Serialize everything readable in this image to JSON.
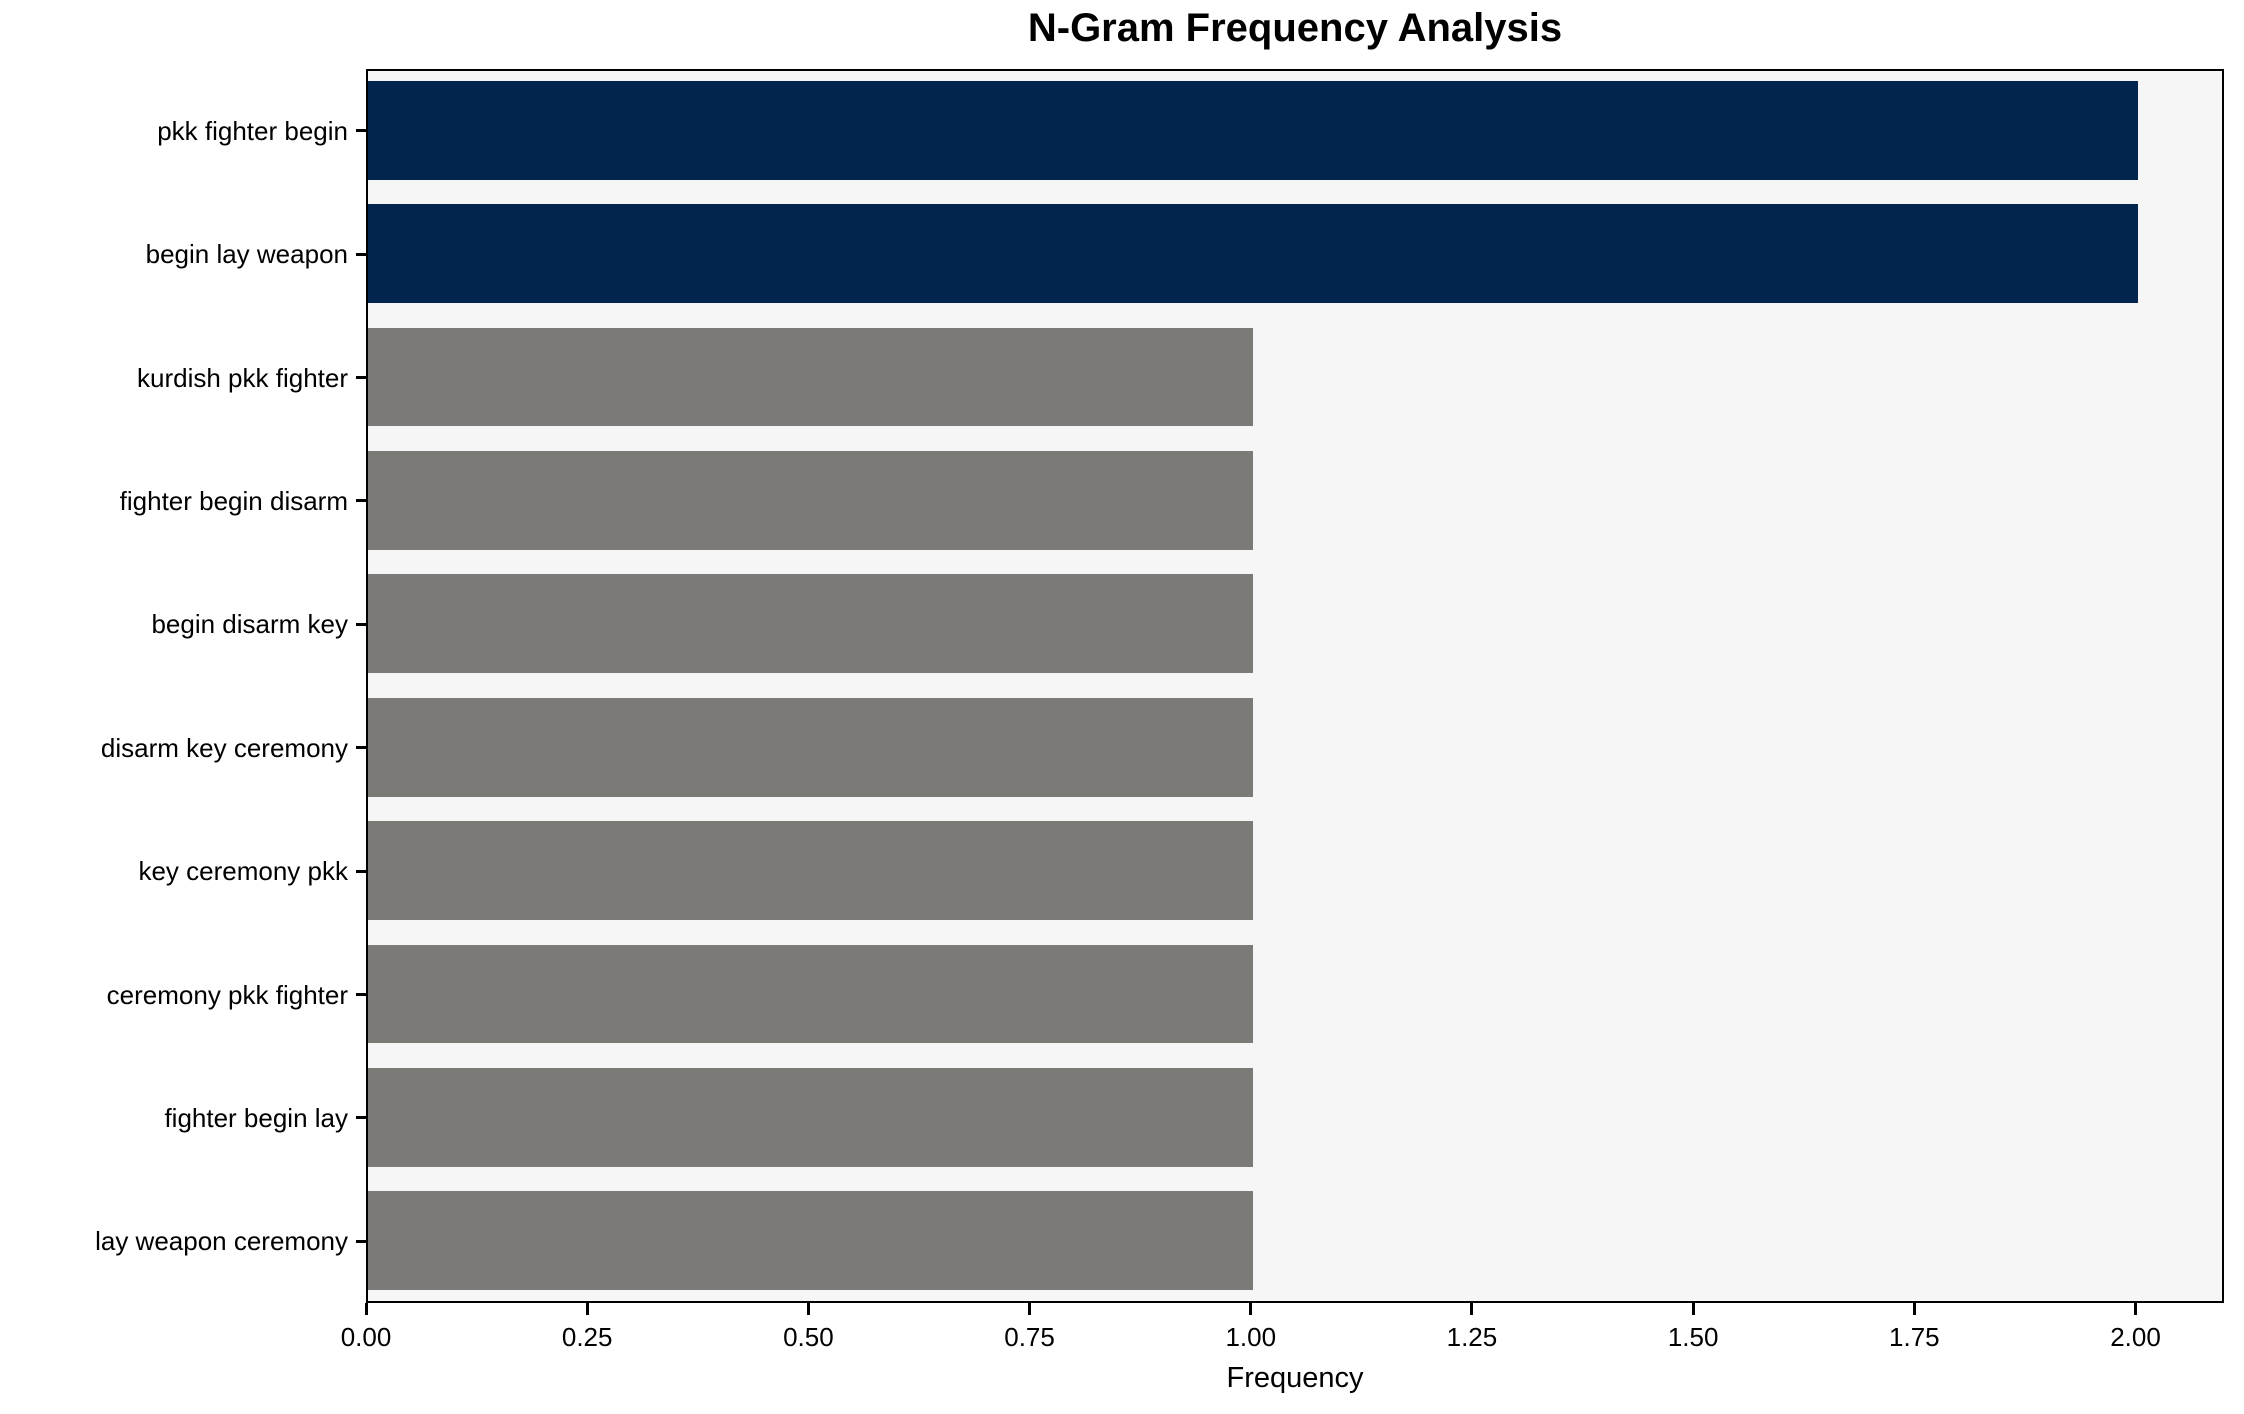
{
  "figure": {
    "background_color": "#ffffff",
    "plot_background_color": "#f7f6f6",
    "spine_color": "#000000"
  },
  "chart_data": {
    "type": "bar",
    "orientation": "horizontal",
    "title": "N-Gram Frequency Analysis",
    "xlabel": "Frequency",
    "ylabel": "",
    "categories": [
      "pkk fighter begin",
      "begin lay weapon",
      "kurdish pkk fighter",
      "fighter begin disarm",
      "begin disarm key",
      "disarm key ceremony",
      "key ceremony pkk",
      "ceremony pkk fighter",
      "fighter begin lay",
      "lay weapon ceremony"
    ],
    "values": [
      2,
      2,
      1,
      1,
      1,
      1,
      1,
      1,
      1,
      1
    ],
    "bar_colors": [
      "#02254e",
      "#02254e",
      "#7b7a77",
      "#7b7a77",
      "#7b7a77",
      "#7b7a77",
      "#7b7a77",
      "#7b7a77",
      "#7b7a77",
      "#7b7a77"
    ],
    "highlight_color": "#02254e",
    "default_color": "#7b7a77",
    "xlim": [
      0,
      2.1
    ],
    "xtick_labels": [
      "0.00",
      "0.25",
      "0.50",
      "0.75",
      "1.00",
      "1.25",
      "1.50",
      "1.75",
      "2.00"
    ],
    "xtick_values": [
      0,
      0.25,
      0.5,
      0.75,
      1.0,
      1.25,
      1.5,
      1.75,
      2.0
    ],
    "grid": false,
    "legend": null
  }
}
